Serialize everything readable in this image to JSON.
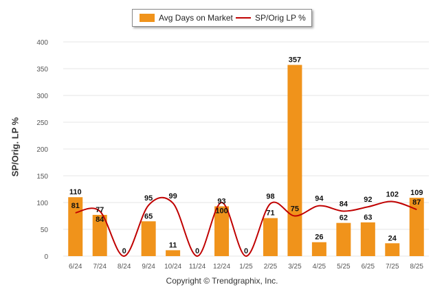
{
  "legend": {
    "bar_label": "Avg Days on Market",
    "line_label": "SP/Orig LP %"
  },
  "y_axis_title": "SP/Orig. LP %",
  "copyright": "Copyright © Trendgraphix, Inc.",
  "colors": {
    "bar": "#f0931b",
    "line": "#c00000",
    "grid": "#e6e6e6",
    "axis_text": "#555555"
  },
  "chart_data": {
    "type": "bar",
    "categories": [
      "6/24",
      "7/24",
      "8/24",
      "9/24",
      "10/24",
      "11/24",
      "12/24",
      "1/25",
      "2/25",
      "3/25",
      "4/25",
      "5/25",
      "6/25",
      "7/25",
      "8/25"
    ],
    "series": [
      {
        "name": "Avg Days on Market",
        "type": "bar",
        "values": [
          110,
          77,
          0,
          65,
          11,
          0,
          93,
          0,
          71,
          357,
          26,
          62,
          63,
          24,
          109
        ]
      },
      {
        "name": "SP/Orig LP %",
        "type": "line",
        "values": [
          81,
          84,
          null,
          95,
          99,
          null,
          100,
          null,
          98,
          75,
          94,
          84,
          92,
          102,
          87
        ]
      }
    ],
    "ylim": [
      0,
      400
    ],
    "yticks": [
      0,
      50,
      100,
      150,
      200,
      250,
      300,
      350,
      400
    ],
    "ylabel": "SP/Orig. LP %",
    "grid": true,
    "legend_position": "top"
  }
}
